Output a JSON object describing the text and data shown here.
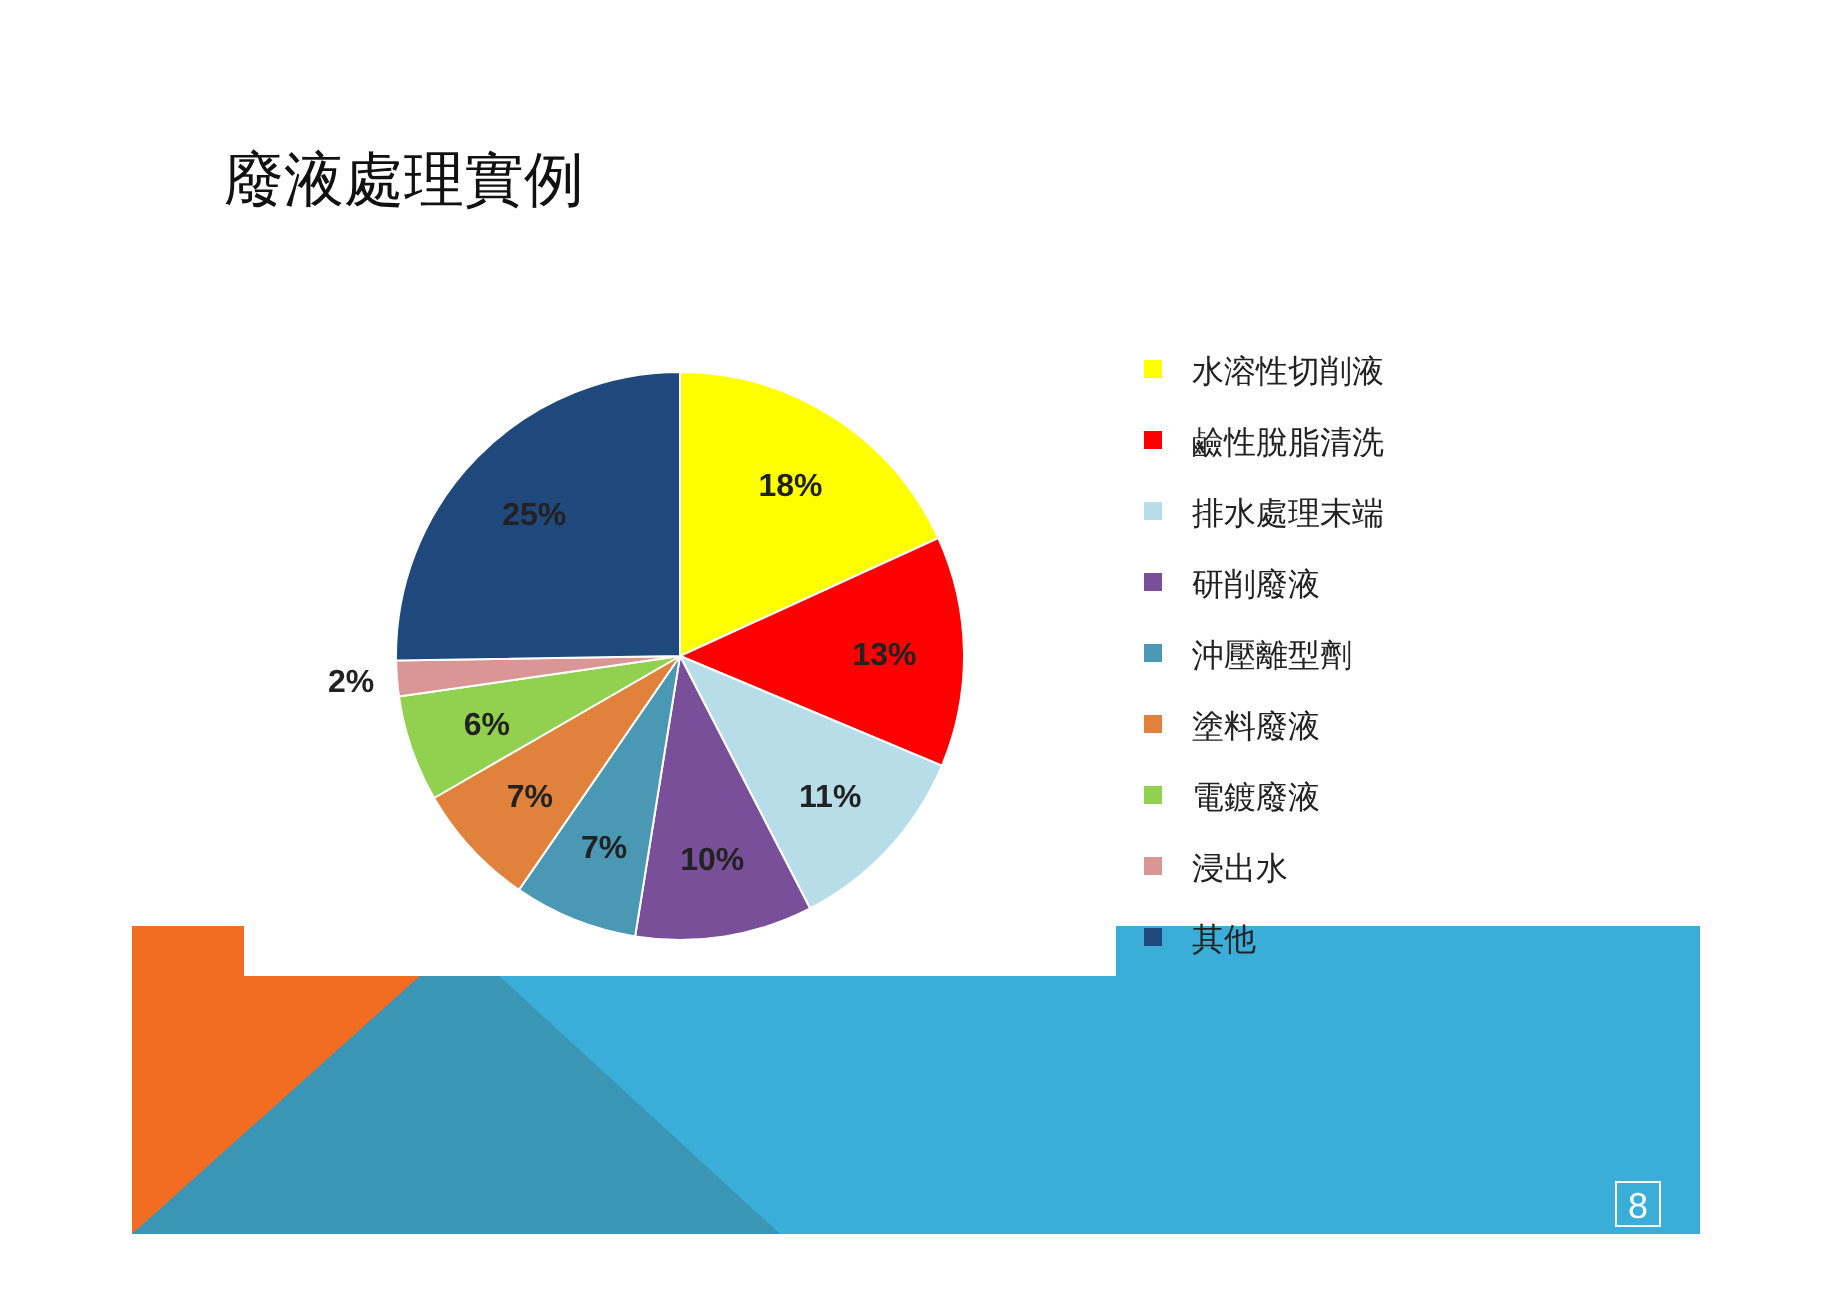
{
  "chart_data": {
    "type": "pie",
    "title": "廢液處理實例",
    "categories": [
      "水溶性切削液",
      "鹼性脫脂清洗",
      "排水處理末端",
      "研削廢液",
      "沖壓離型劑",
      "塗料廢液",
      "電鍍廢液",
      "浸出水",
      "其他"
    ],
    "values": [
      18,
      13,
      11,
      10,
      7,
      7,
      6,
      2,
      25
    ],
    "value_labels": [
      "18%",
      "13%",
      "11%",
      "10%",
      "7%",
      "7%",
      "6%",
      "2%",
      "25%"
    ],
    "colors": [
      "#ffff00",
      "#ff0000",
      "#b7dde8",
      "#7a4f9a",
      "#4a98b4",
      "#e0823c",
      "#92d050",
      "#d99694",
      "#1f497d"
    ],
    "legend": "right",
    "annotations": [
      "8"
    ]
  }
}
